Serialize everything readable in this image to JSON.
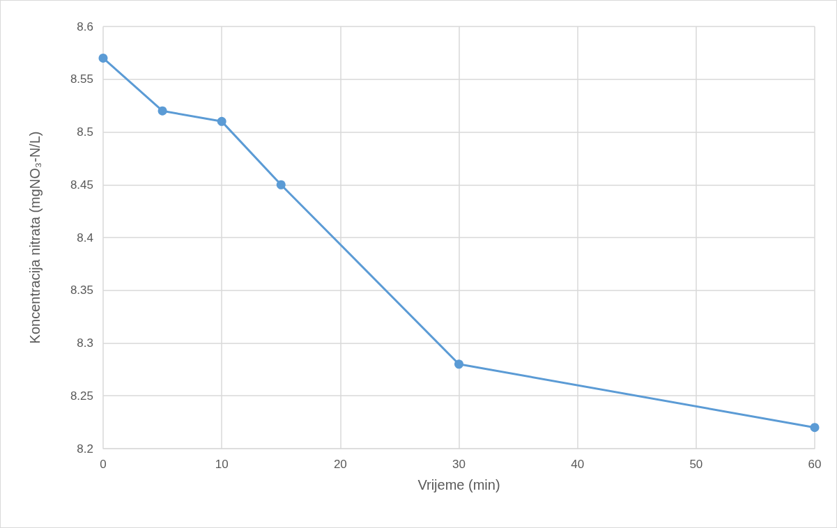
{
  "chart_data": {
    "type": "line",
    "xlabel": "Vrijeme (min)",
    "ylabel": "Koncentracija nitrata (mgNO₃-N/L)",
    "x": [
      0,
      5,
      10,
      15,
      30,
      60
    ],
    "series": [
      {
        "color": "#5b9bd5",
        "values": [
          8.57,
          8.52,
          8.51,
          8.45,
          8.28,
          8.22
        ]
      }
    ],
    "xlim": [
      0,
      60
    ],
    "xticks": [
      0,
      10,
      20,
      30,
      40,
      50,
      60
    ],
    "ylim": [
      8.2,
      8.6
    ],
    "yticks": [
      8.2,
      8.25,
      8.3,
      8.35,
      8.4,
      8.45,
      8.5,
      8.55,
      8.6
    ],
    "grid": true,
    "marker": "circle",
    "line_style": "solid"
  }
}
